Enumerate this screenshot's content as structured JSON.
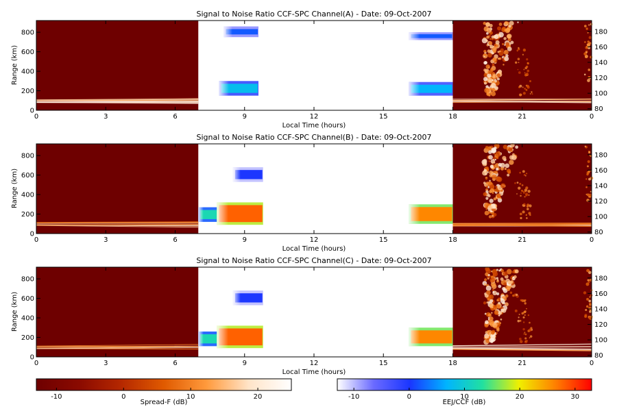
{
  "chart_data": [
    {
      "type": "heatmap",
      "title": "Signal to Noise Ratio CCF-SPC Channel(A) - Date: 09-Oct-2007",
      "xlabel": "Local Time (hours)",
      "ylabel": "Range (km)",
      "x_ticks": [
        "0",
        "3",
        "6",
        "9",
        "12",
        "15",
        "18",
        "21",
        "0"
      ],
      "y_ticks": [
        0,
        200,
        400,
        600,
        800
      ],
      "y2_ticks": [
        80,
        100,
        120,
        140,
        160,
        180
      ],
      "xlim": [
        0,
        24
      ],
      "ylim": [
        0,
        920
      ],
      "night_segments": [
        [
          0,
          7
        ],
        [
          18,
          24
        ]
      ],
      "day_echoes": [
        {
          "t0": 8.1,
          "t1": 9.6,
          "r0": 750,
          "r1": 860,
          "level": 2
        },
        {
          "t0": 7.9,
          "t1": 9.6,
          "r0": 150,
          "r1": 300,
          "level": 8
        },
        {
          "t0": 16.1,
          "t1": 18.0,
          "r0": 720,
          "r1": 800,
          "level": 2
        },
        {
          "t0": 16.1,
          "t1": 18.0,
          "r0": 150,
          "r1": 290,
          "level": 7
        }
      ]
    },
    {
      "type": "heatmap",
      "title": "Signal to Noise Ratio CCF-SPC Channel(B) - Date: 09-Oct-2007",
      "xlabel": "Local Time (hours)",
      "ylabel": "Range (km)",
      "x_ticks": [
        "0",
        "3",
        "6",
        "9",
        "12",
        "15",
        "18",
        "21",
        "0"
      ],
      "y_ticks": [
        0,
        200,
        400,
        600,
        800
      ],
      "y2_ticks": [
        80,
        100,
        120,
        140,
        160,
        180
      ],
      "xlim": [
        0,
        24
      ],
      "ylim": [
        0,
        920
      ],
      "night_segments": [
        [
          0,
          7
        ],
        [
          18,
          24
        ]
      ],
      "day_echoes": [
        {
          "t0": 7.0,
          "t1": 7.9,
          "r0": 120,
          "r1": 270,
          "level": 12
        },
        {
          "t0": 7.8,
          "t1": 9.8,
          "r0": 90,
          "r1": 320,
          "level": 28
        },
        {
          "t0": 8.5,
          "t1": 9.8,
          "r0": 530,
          "r1": 680,
          "level": 0
        },
        {
          "t0": 16.1,
          "t1": 18.0,
          "r0": 100,
          "r1": 300,
          "level": 26
        }
      ]
    },
    {
      "type": "heatmap",
      "title": "Signal to Noise Ratio CCF-SPC Channel(C) - Date: 09-Oct-2007",
      "xlabel": "Local Time (hours)",
      "ylabel": "Range (km)",
      "x_ticks": [
        "0",
        "3",
        "6",
        "9",
        "12",
        "15",
        "18",
        "21",
        "0"
      ],
      "y_ticks": [
        0,
        200,
        400,
        600,
        800
      ],
      "y2_ticks": [
        80,
        100,
        120,
        140,
        160,
        180
      ],
      "xlim": [
        0,
        24
      ],
      "ylim": [
        0,
        920
      ],
      "night_segments": [
        [
          0,
          7
        ],
        [
          18,
          24
        ]
      ],
      "day_echoes": [
        {
          "t0": 7.0,
          "t1": 7.9,
          "r0": 110,
          "r1": 260,
          "level": 12
        },
        {
          "t0": 7.8,
          "t1": 9.8,
          "r0": 90,
          "r1": 320,
          "level": 28
        },
        {
          "t0": 8.5,
          "t1": 9.8,
          "r0": 530,
          "r1": 680,
          "level": 0
        },
        {
          "t0": 16.1,
          "t1": 18.0,
          "r0": 110,
          "r1": 300,
          "level": 26
        }
      ]
    }
  ],
  "colorbars": [
    {
      "label": "Spread-F (dB)",
      "ticks": [
        "-10",
        "0",
        "10",
        "20"
      ],
      "range": [
        -13,
        25
      ],
      "colors": [
        "#6e0000",
        "#8a0a00",
        "#b52800",
        "#e05a00",
        "#ff9a3c",
        "#ffe4c8",
        "#ffffff"
      ]
    },
    {
      "label": "EEJ/CCF (dB)",
      "ticks": [
        "-10",
        "0",
        "10",
        "20",
        "30"
      ],
      "range": [
        -13,
        33
      ],
      "colors": [
        "#ffffff",
        "#6a6aff",
        "#1a36ff",
        "#00b4ff",
        "#21e0a0",
        "#f0f000",
        "#ff8000",
        "#ff0000"
      ]
    }
  ]
}
